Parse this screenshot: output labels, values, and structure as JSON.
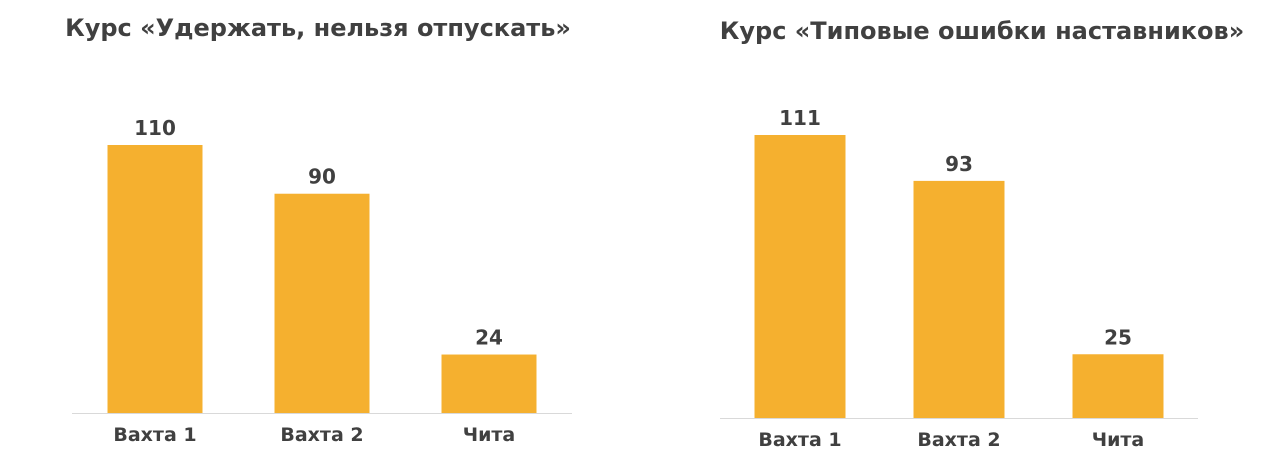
{
  "chart_data": [
    {
      "type": "bar",
      "title": "Курс «Удержать, нельзя отпускать»",
      "categories": [
        "Вахта 1",
        "Вахта 2",
        "Чита"
      ],
      "values": [
        110,
        90,
        24
      ],
      "color": "#f5b02f"
    },
    {
      "type": "bar",
      "title": "Курс «Типовые ошибки наставников»",
      "categories": [
        "Вахта 1",
        "Вахта 2",
        "Чита"
      ],
      "values": [
        111,
        93,
        25
      ],
      "color": "#f5b02f"
    }
  ]
}
